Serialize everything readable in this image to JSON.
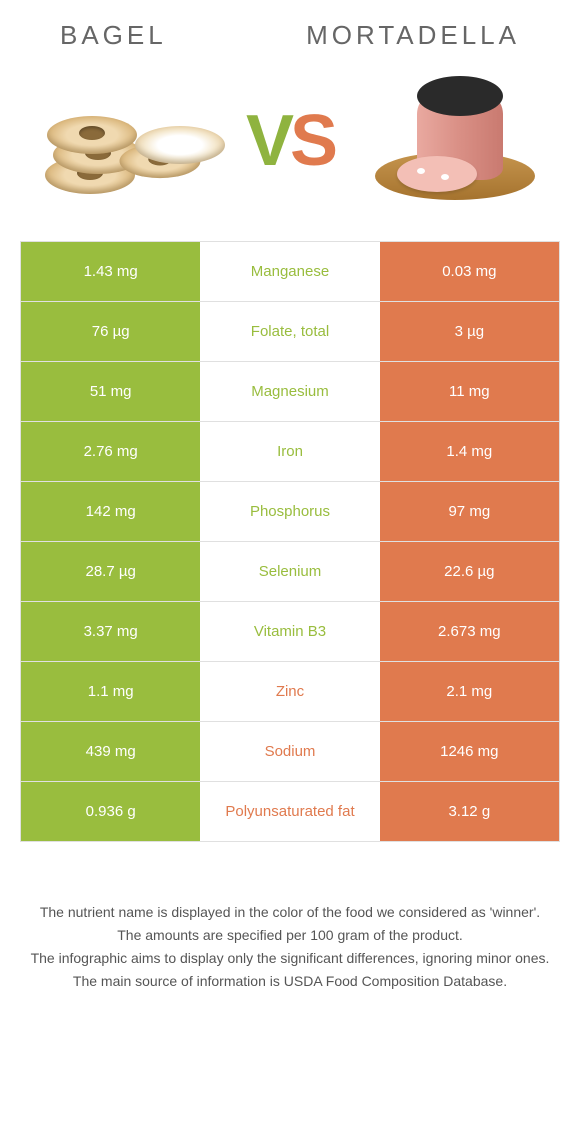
{
  "header": {
    "left_title": "Bagel",
    "right_title": "Mortadella",
    "vs_v": "V",
    "vs_s": "S"
  },
  "colors": {
    "left": "#99bd3e",
    "right": "#e07a4e",
    "mid_bg": "#ffffff",
    "border": "#e0e0e0",
    "text": "#555555"
  },
  "rows": [
    {
      "nutrient": "Manganese",
      "left": "1.43 mg",
      "right": "0.03 mg",
      "winner": "left"
    },
    {
      "nutrient": "Folate, total",
      "left": "76 µg",
      "right": "3 µg",
      "winner": "left"
    },
    {
      "nutrient": "Magnesium",
      "left": "51 mg",
      "right": "11 mg",
      "winner": "left"
    },
    {
      "nutrient": "Iron",
      "left": "2.76 mg",
      "right": "1.4 mg",
      "winner": "left"
    },
    {
      "nutrient": "Phosphorus",
      "left": "142 mg",
      "right": "97 mg",
      "winner": "left"
    },
    {
      "nutrient": "Selenium",
      "left": "28.7 µg",
      "right": "22.6 µg",
      "winner": "left"
    },
    {
      "nutrient": "Vitamin B3",
      "left": "3.37 mg",
      "right": "2.673 mg",
      "winner": "left"
    },
    {
      "nutrient": "Zinc",
      "left": "1.1 mg",
      "right": "2.1 mg",
      "winner": "right"
    },
    {
      "nutrient": "Sodium",
      "left": "439 mg",
      "right": "1246 mg",
      "winner": "right"
    },
    {
      "nutrient": "Polyunsaturated fat",
      "left": "0.936 g",
      "right": "3.12 g",
      "winner": "right"
    }
  ],
  "footnotes": [
    "The nutrient name is displayed in the color of the food we considered as 'winner'.",
    "The amounts are specified per 100 gram of the product.",
    "The infographic aims to display only the significant differences, ignoring minor ones.",
    "The main source of information is USDA Food Composition Database."
  ]
}
